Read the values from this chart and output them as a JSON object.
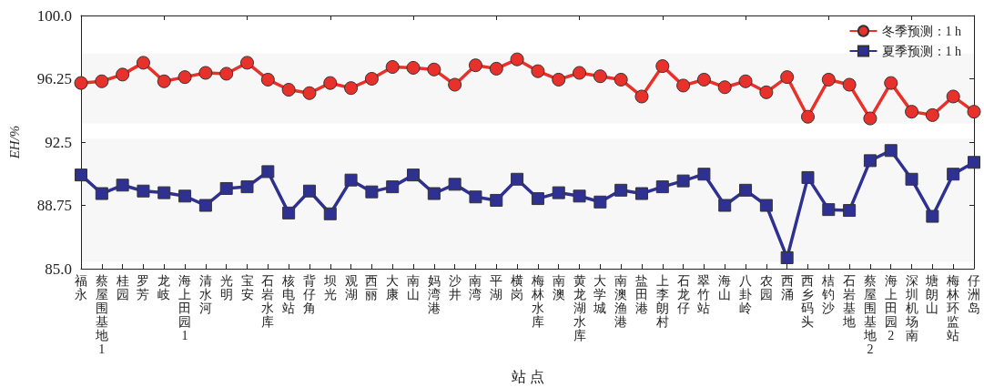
{
  "chart_data": {
    "type": "line",
    "xlabel": "站 点",
    "ylabel": "EH/%",
    "categories": [
      "福永",
      "蔡屋围基地1",
      "桂园",
      "罗芳",
      "龙岐",
      "海上田园1",
      "清水河",
      "光明",
      "宝安",
      "石岩水库",
      "核电站",
      "背仔角",
      "坝光",
      "观湖",
      "西丽",
      "大康",
      "南山",
      "妈湾港",
      "沙井",
      "南湾",
      "平湖",
      "横岗",
      "梅林水库",
      "南澳",
      "黄龙湖水库",
      "大学城",
      "南澳渔港",
      "盐田港",
      "上李朗村",
      "石龙仔",
      "翠竹站",
      "海山",
      "八卦岭",
      "农园",
      "西涌",
      "西乡码头",
      "桔钓沙",
      "石岩基地",
      "蔡屋围基地2",
      "海上田园2",
      "深圳机场南",
      "塘朗山",
      "梅林环监站",
      "仔洲岛"
    ],
    "series": [
      {
        "name": "冬季预测：1 h",
        "color": "#e8312a",
        "marker": "circle",
        "values": [
          96.0,
          96.1,
          96.5,
          97.2,
          96.1,
          96.35,
          96.6,
          96.55,
          97.2,
          96.2,
          95.6,
          95.4,
          96.0,
          95.7,
          96.25,
          96.95,
          96.9,
          96.8,
          95.9,
          97.05,
          96.85,
          97.4,
          96.7,
          96.2,
          96.6,
          96.4,
          96.2,
          95.2,
          97.0,
          95.85,
          96.2,
          95.75,
          96.1,
          95.45,
          96.35,
          94.0,
          96.2,
          95.9,
          93.9,
          96.0,
          94.3,
          94.1,
          95.2,
          94.3
        ]
      },
      {
        "name": "夏季预测：1 h",
        "color": "#2e3192",
        "marker": "square",
        "values": [
          90.55,
          89.45,
          89.95,
          89.6,
          89.5,
          89.3,
          88.75,
          89.75,
          89.85,
          90.75,
          88.3,
          89.6,
          88.25,
          90.25,
          89.55,
          89.85,
          90.55,
          89.45,
          90.0,
          89.25,
          89.05,
          90.3,
          89.15,
          89.5,
          89.3,
          88.95,
          89.65,
          89.45,
          89.85,
          90.2,
          90.6,
          88.75,
          89.65,
          88.75,
          85.65,
          90.4,
          88.5,
          88.45,
          91.4,
          92.0,
          90.3,
          88.1,
          90.6,
          91.3
        ]
      }
    ],
    "ylim": [
      85,
      100
    ],
    "yticks": [
      {
        "value": 85,
        "label": "85.0"
      },
      88.75,
      92.5,
      96.25,
      {
        "value": 100,
        "label": "100.0"
      }
    ],
    "bands": [
      {
        "axis": "y",
        "from": 93.6,
        "to": 97.75,
        "color": "#f7f7f7"
      },
      {
        "axis": "y",
        "from": 85.4,
        "to": 92.7,
        "color": "#f7f7f7"
      }
    ],
    "grid": false,
    "legend": "top right",
    "line_style": "solid"
  }
}
